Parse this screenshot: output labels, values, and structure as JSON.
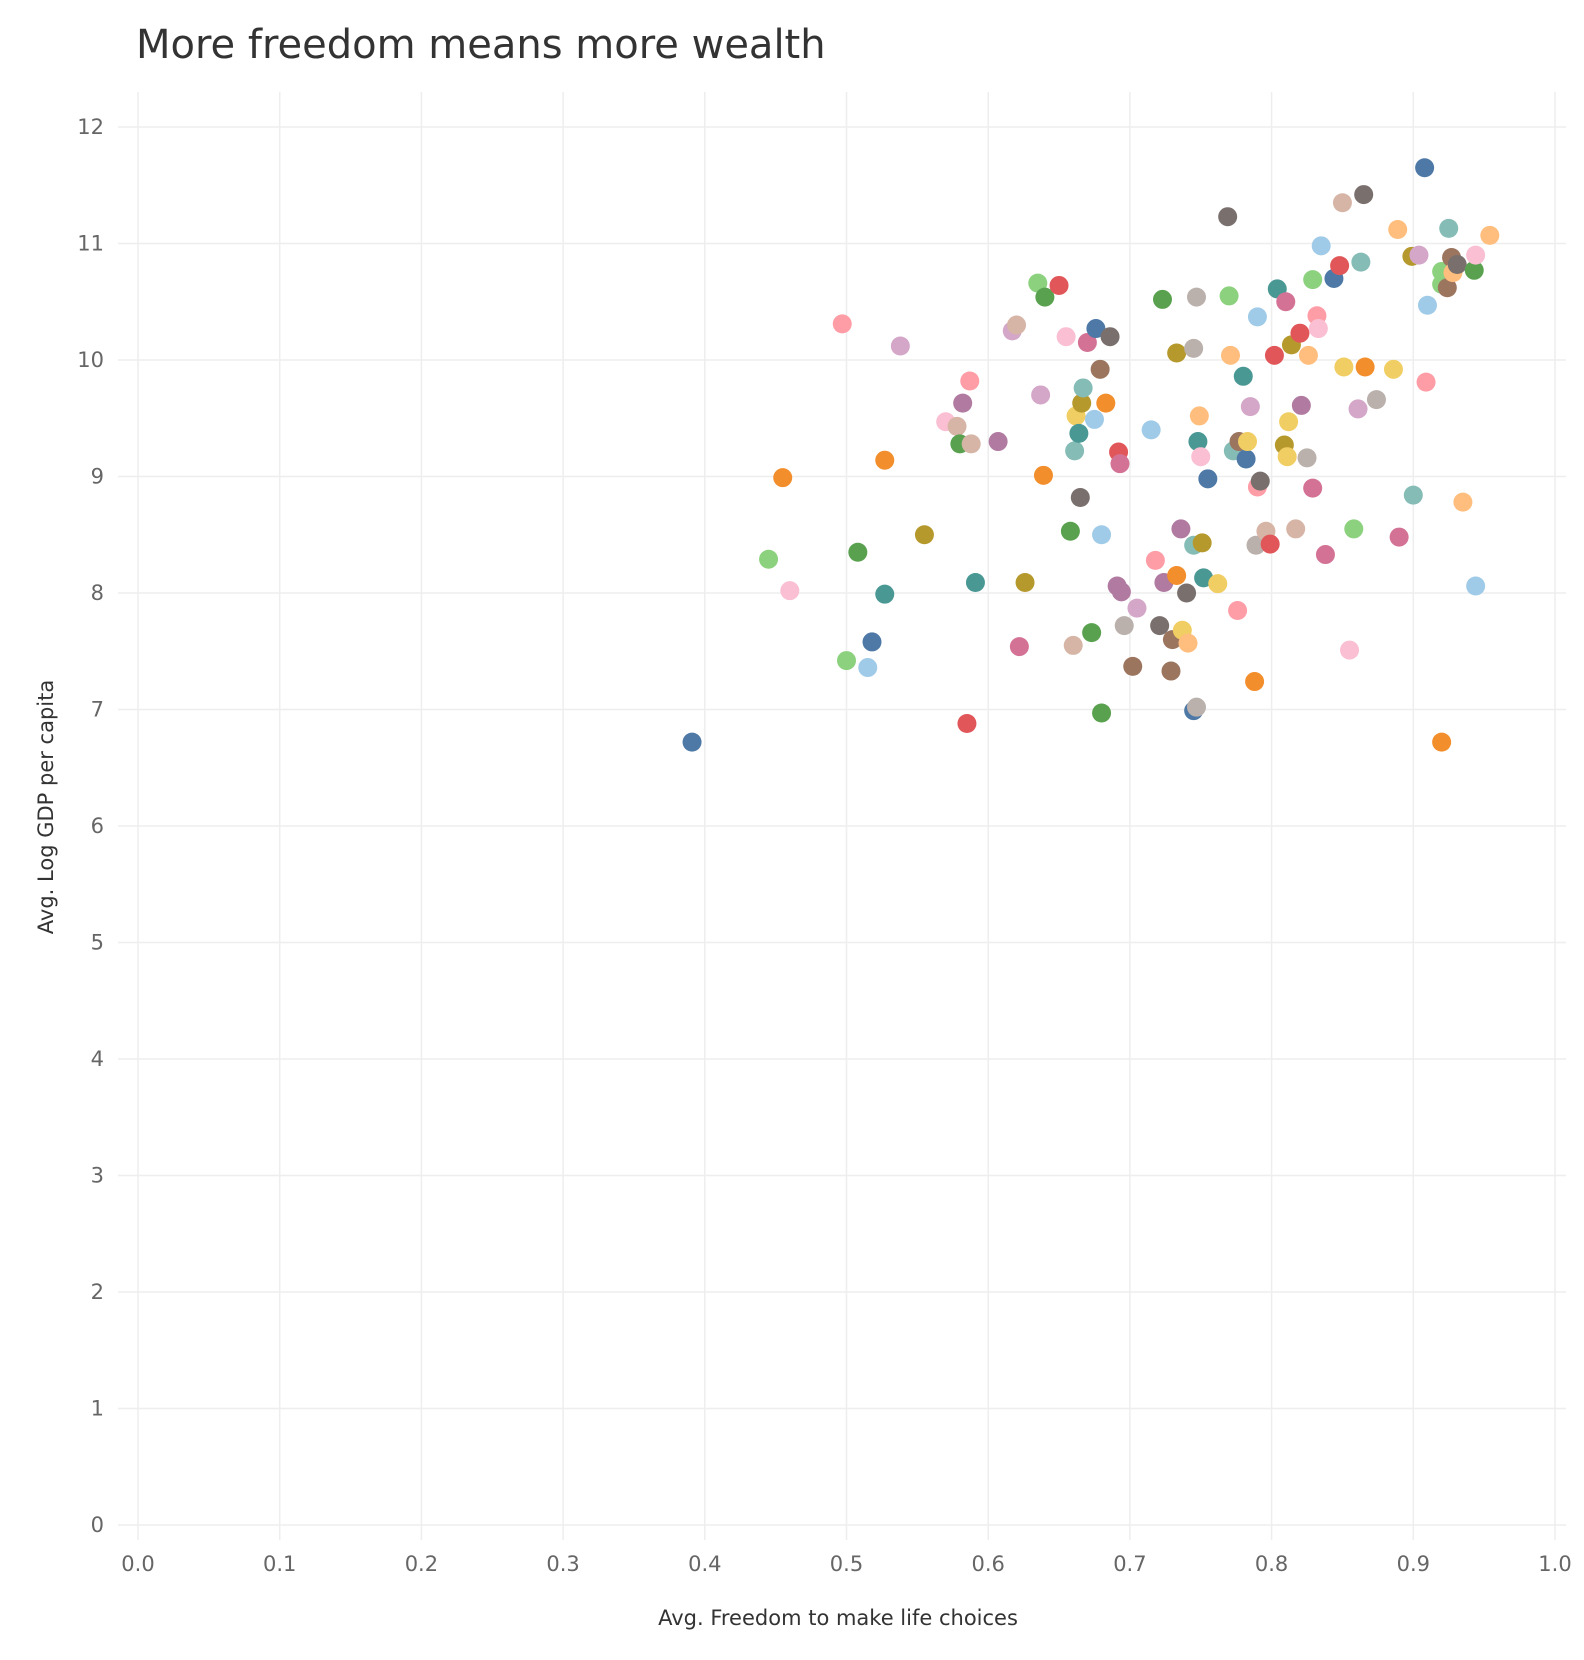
{
  "chart_data": {
    "type": "scatter",
    "title": "More freedom means more wealth",
    "xlabel": "Avg. Freedom to make life choices",
    "ylabel": "Avg. Log GDP per capita",
    "xlim": [
      0.0,
      1.0
    ],
    "ylim": [
      0,
      12
    ],
    "x_ticks": [
      "0.0",
      "0.1",
      "0.2",
      "0.3",
      "0.4",
      "0.5",
      "0.6",
      "0.7",
      "0.8",
      "0.9",
      "1.0"
    ],
    "y_ticks": [
      "0",
      "1",
      "2",
      "3",
      "4",
      "5",
      "6",
      "7",
      "8",
      "9",
      "10",
      "11",
      "12"
    ],
    "grid": true,
    "legend": "none",
    "palette": [
      "#4e79a7",
      "#f28e2b",
      "#e15759",
      "#76b7b2",
      "#59a14f",
      "#edc948",
      "#b07aa1",
      "#ff9da7",
      "#9c755f",
      "#bab0ac",
      "#a0cbe8",
      "#ffbe7d",
      "#8cd17d",
      "#b6992d",
      "#499894",
      "#86bcb6",
      "#d37295",
      "#fabfd2",
      "#d4a6c8",
      "#d7b5a6",
      "#79706e",
      "#f1ce63"
    ],
    "points": [
      {
        "x": 0.391,
        "y": 6.72,
        "color": "#4e79a7"
      },
      {
        "x": 0.445,
        "y": 8.29,
        "color": "#8cd17d"
      },
      {
        "x": 0.455,
        "y": 8.99,
        "color": "#f28e2b"
      },
      {
        "x": 0.46,
        "y": 8.02,
        "color": "#fabfd2"
      },
      {
        "x": 0.497,
        "y": 10.31,
        "color": "#ff9da7"
      },
      {
        "x": 0.5,
        "y": 7.42,
        "color": "#8cd17d"
      },
      {
        "x": 0.508,
        "y": 8.35,
        "color": "#59a14f"
      },
      {
        "x": 0.515,
        "y": 7.36,
        "color": "#a0cbe8"
      },
      {
        "x": 0.518,
        "y": 7.58,
        "color": "#4e79a7"
      },
      {
        "x": 0.527,
        "y": 7.99,
        "color": "#499894"
      },
      {
        "x": 0.527,
        "y": 9.14,
        "color": "#f28e2b"
      },
      {
        "x": 0.538,
        "y": 10.12,
        "color": "#d4a6c8"
      },
      {
        "x": 0.555,
        "y": 8.5,
        "color": "#b6992d"
      },
      {
        "x": 0.57,
        "y": 9.47,
        "color": "#fabfd2"
      },
      {
        "x": 0.578,
        "y": 9.43,
        "color": "#d7b5a6"
      },
      {
        "x": 0.58,
        "y": 9.28,
        "color": "#59a14f"
      },
      {
        "x": 0.582,
        "y": 9.63,
        "color": "#b07aa1"
      },
      {
        "x": 0.585,
        "y": 6.88,
        "color": "#e15759"
      },
      {
        "x": 0.587,
        "y": 9.82,
        "color": "#ff9da7"
      },
      {
        "x": 0.588,
        "y": 9.28,
        "color": "#d7b5a6"
      },
      {
        "x": 0.591,
        "y": 8.09,
        "color": "#499894"
      },
      {
        "x": 0.607,
        "y": 9.3,
        "color": "#b07aa1"
      },
      {
        "x": 0.617,
        "y": 10.25,
        "color": "#d4a6c8"
      },
      {
        "x": 0.62,
        "y": 10.3,
        "color": "#d7b5a6"
      },
      {
        "x": 0.622,
        "y": 7.54,
        "color": "#d37295"
      },
      {
        "x": 0.626,
        "y": 8.09,
        "color": "#b6992d"
      },
      {
        "x": 0.635,
        "y": 10.66,
        "color": "#8cd17d"
      },
      {
        "x": 0.637,
        "y": 9.7,
        "color": "#d4a6c8"
      },
      {
        "x": 0.639,
        "y": 9.01,
        "color": "#f28e2b"
      },
      {
        "x": 0.64,
        "y": 10.54,
        "color": "#59a14f"
      },
      {
        "x": 0.65,
        "y": 10.64,
        "color": "#e15759"
      },
      {
        "x": 0.655,
        "y": 10.2,
        "color": "#fabfd2"
      },
      {
        "x": 0.658,
        "y": 8.53,
        "color": "#59a14f"
      },
      {
        "x": 0.66,
        "y": 7.55,
        "color": "#d7b5a6"
      },
      {
        "x": 0.661,
        "y": 9.22,
        "color": "#86bcb6"
      },
      {
        "x": 0.662,
        "y": 9.52,
        "color": "#f1ce63"
      },
      {
        "x": 0.664,
        "y": 9.37,
        "color": "#499894"
      },
      {
        "x": 0.665,
        "y": 8.82,
        "color": "#79706e"
      },
      {
        "x": 0.666,
        "y": 9.63,
        "color": "#b6992d"
      },
      {
        "x": 0.667,
        "y": 9.76,
        "color": "#86bcb6"
      },
      {
        "x": 0.67,
        "y": 10.15,
        "color": "#d37295"
      },
      {
        "x": 0.673,
        "y": 7.66,
        "color": "#59a14f"
      },
      {
        "x": 0.675,
        "y": 9.49,
        "color": "#a0cbe8"
      },
      {
        "x": 0.676,
        "y": 10.27,
        "color": "#4e79a7"
      },
      {
        "x": 0.679,
        "y": 9.92,
        "color": "#9c755f"
      },
      {
        "x": 0.68,
        "y": 8.5,
        "color": "#a0cbe8"
      },
      {
        "x": 0.68,
        "y": 6.97,
        "color": "#59a14f"
      },
      {
        "x": 0.683,
        "y": 9.63,
        "color": "#f28e2b"
      },
      {
        "x": 0.686,
        "y": 10.2,
        "color": "#79706e"
      },
      {
        "x": 0.691,
        "y": 8.06,
        "color": "#b07aa1"
      },
      {
        "x": 0.692,
        "y": 9.21,
        "color": "#e15759"
      },
      {
        "x": 0.693,
        "y": 9.11,
        "color": "#d37295"
      },
      {
        "x": 0.694,
        "y": 8.01,
        "color": "#b07aa1"
      },
      {
        "x": 0.696,
        "y": 7.72,
        "color": "#bab0ac"
      },
      {
        "x": 0.702,
        "y": 7.37,
        "color": "#9c755f"
      },
      {
        "x": 0.705,
        "y": 7.87,
        "color": "#d4a6c8"
      },
      {
        "x": 0.715,
        "y": 9.4,
        "color": "#a0cbe8"
      },
      {
        "x": 0.718,
        "y": 8.28,
        "color": "#ff9da7"
      },
      {
        "x": 0.721,
        "y": 7.72,
        "color": "#79706e"
      },
      {
        "x": 0.723,
        "y": 10.52,
        "color": "#59a14f"
      },
      {
        "x": 0.724,
        "y": 8.09,
        "color": "#b07aa1"
      },
      {
        "x": 0.729,
        "y": 7.33,
        "color": "#9c755f"
      },
      {
        "x": 0.73,
        "y": 7.6,
        "color": "#9c755f"
      },
      {
        "x": 0.733,
        "y": 10.06,
        "color": "#b6992d"
      },
      {
        "x": 0.733,
        "y": 8.15,
        "color": "#f28e2b"
      },
      {
        "x": 0.736,
        "y": 8.55,
        "color": "#b07aa1"
      },
      {
        "x": 0.737,
        "y": 7.68,
        "color": "#f1ce63"
      },
      {
        "x": 0.74,
        "y": 8.0,
        "color": "#79706e"
      },
      {
        "x": 0.741,
        "y": 7.57,
        "color": "#ffbe7d"
      },
      {
        "x": 0.745,
        "y": 10.1,
        "color": "#bab0ac"
      },
      {
        "x": 0.745,
        "y": 8.41,
        "color": "#86bcb6"
      },
      {
        "x": 0.745,
        "y": 6.99,
        "color": "#4e79a7"
      },
      {
        "x": 0.747,
        "y": 10.54,
        "color": "#bab0ac"
      },
      {
        "x": 0.747,
        "y": 7.02,
        "color": "#bab0ac"
      },
      {
        "x": 0.748,
        "y": 9.3,
        "color": "#499894"
      },
      {
        "x": 0.749,
        "y": 9.52,
        "color": "#ffbe7d"
      },
      {
        "x": 0.75,
        "y": 9.17,
        "color": "#fabfd2"
      },
      {
        "x": 0.751,
        "y": 8.43,
        "color": "#b6992d"
      },
      {
        "x": 0.752,
        "y": 8.13,
        "color": "#499894"
      },
      {
        "x": 0.755,
        "y": 8.98,
        "color": "#4e79a7"
      },
      {
        "x": 0.762,
        "y": 8.08,
        "color": "#f1ce63"
      },
      {
        "x": 0.769,
        "y": 11.23,
        "color": "#79706e"
      },
      {
        "x": 0.77,
        "y": 10.55,
        "color": "#8cd17d"
      },
      {
        "x": 0.771,
        "y": 10.04,
        "color": "#ffbe7d"
      },
      {
        "x": 0.773,
        "y": 9.22,
        "color": "#86bcb6"
      },
      {
        "x": 0.776,
        "y": 7.85,
        "color": "#ff9da7"
      },
      {
        "x": 0.777,
        "y": 9.3,
        "color": "#9c755f"
      },
      {
        "x": 0.78,
        "y": 9.86,
        "color": "#499894"
      },
      {
        "x": 0.782,
        "y": 9.15,
        "color": "#4e79a7"
      },
      {
        "x": 0.783,
        "y": 9.3,
        "color": "#f1ce63"
      },
      {
        "x": 0.785,
        "y": 9.6,
        "color": "#d4a6c8"
      },
      {
        "x": 0.788,
        "y": 7.24,
        "color": "#f28e2b"
      },
      {
        "x": 0.789,
        "y": 8.41,
        "color": "#bab0ac"
      },
      {
        "x": 0.79,
        "y": 10.37,
        "color": "#a0cbe8"
      },
      {
        "x": 0.79,
        "y": 8.91,
        "color": "#ff9da7"
      },
      {
        "x": 0.792,
        "y": 8.96,
        "color": "#79706e"
      },
      {
        "x": 0.796,
        "y": 8.53,
        "color": "#d7b5a6"
      },
      {
        "x": 0.799,
        "y": 8.42,
        "color": "#e15759"
      },
      {
        "x": 0.802,
        "y": 10.04,
        "color": "#e15759"
      },
      {
        "x": 0.804,
        "y": 10.61,
        "color": "#499894"
      },
      {
        "x": 0.809,
        "y": 9.27,
        "color": "#b6992d"
      },
      {
        "x": 0.81,
        "y": 10.5,
        "color": "#d37295"
      },
      {
        "x": 0.811,
        "y": 9.17,
        "color": "#f1ce63"
      },
      {
        "x": 0.812,
        "y": 9.47,
        "color": "#f1ce63"
      },
      {
        "x": 0.814,
        "y": 10.13,
        "color": "#b6992d"
      },
      {
        "x": 0.817,
        "y": 8.55,
        "color": "#d7b5a6"
      },
      {
        "x": 0.82,
        "y": 10.23,
        "color": "#e15759"
      },
      {
        "x": 0.821,
        "y": 9.61,
        "color": "#b07aa1"
      },
      {
        "x": 0.825,
        "y": 9.16,
        "color": "#bab0ac"
      },
      {
        "x": 0.826,
        "y": 10.04,
        "color": "#ffbe7d"
      },
      {
        "x": 0.829,
        "y": 8.9,
        "color": "#d37295"
      },
      {
        "x": 0.829,
        "y": 10.69,
        "color": "#8cd17d"
      },
      {
        "x": 0.832,
        "y": 10.38,
        "color": "#ff9da7"
      },
      {
        "x": 0.833,
        "y": 10.27,
        "color": "#fabfd2"
      },
      {
        "x": 0.835,
        "y": 10.98,
        "color": "#a0cbe8"
      },
      {
        "x": 0.838,
        "y": 8.33,
        "color": "#d37295"
      },
      {
        "x": 0.844,
        "y": 10.7,
        "color": "#4e79a7"
      },
      {
        "x": 0.848,
        "y": 10.81,
        "color": "#e15759"
      },
      {
        "x": 0.85,
        "y": 11.35,
        "color": "#d7b5a6"
      },
      {
        "x": 0.851,
        "y": 9.94,
        "color": "#f1ce63"
      },
      {
        "x": 0.855,
        "y": 7.51,
        "color": "#fabfd2"
      },
      {
        "x": 0.858,
        "y": 8.55,
        "color": "#8cd17d"
      },
      {
        "x": 0.861,
        "y": 9.58,
        "color": "#d4a6c8"
      },
      {
        "x": 0.863,
        "y": 10.84,
        "color": "#86bcb6"
      },
      {
        "x": 0.865,
        "y": 11.42,
        "color": "#79706e"
      },
      {
        "x": 0.866,
        "y": 9.94,
        "color": "#f28e2b"
      },
      {
        "x": 0.874,
        "y": 9.66,
        "color": "#bab0ac"
      },
      {
        "x": 0.886,
        "y": 9.92,
        "color": "#f1ce63"
      },
      {
        "x": 0.889,
        "y": 11.12,
        "color": "#ffbe7d"
      },
      {
        "x": 0.89,
        "y": 8.48,
        "color": "#d37295"
      },
      {
        "x": 0.899,
        "y": 10.89,
        "color": "#b6992d"
      },
      {
        "x": 0.9,
        "y": 8.84,
        "color": "#86bcb6"
      },
      {
        "x": 0.904,
        "y": 10.9,
        "color": "#d4a6c8"
      },
      {
        "x": 0.908,
        "y": 11.65,
        "color": "#4e79a7"
      },
      {
        "x": 0.909,
        "y": 9.81,
        "color": "#ff9da7"
      },
      {
        "x": 0.91,
        "y": 10.47,
        "color": "#a0cbe8"
      },
      {
        "x": 0.92,
        "y": 10.76,
        "color": "#8cd17d"
      },
      {
        "x": 0.92,
        "y": 10.65,
        "color": "#8cd17d"
      },
      {
        "x": 0.92,
        "y": 6.72,
        "color": "#f28e2b"
      },
      {
        "x": 0.924,
        "y": 10.62,
        "color": "#9c755f"
      },
      {
        "x": 0.925,
        "y": 11.13,
        "color": "#86bcb6"
      },
      {
        "x": 0.927,
        "y": 10.88,
        "color": "#9c755f"
      },
      {
        "x": 0.928,
        "y": 10.75,
        "color": "#ffbe7d"
      },
      {
        "x": 0.931,
        "y": 10.82,
        "color": "#79706e"
      },
      {
        "x": 0.935,
        "y": 8.78,
        "color": "#ffbe7d"
      },
      {
        "x": 0.943,
        "y": 10.77,
        "color": "#59a14f"
      },
      {
        "x": 0.944,
        "y": 10.9,
        "color": "#fabfd2"
      },
      {
        "x": 0.944,
        "y": 8.06,
        "color": "#a0cbe8"
      },
      {
        "x": 0.954,
        "y": 11.07,
        "color": "#ffbe7d"
      }
    ]
  }
}
